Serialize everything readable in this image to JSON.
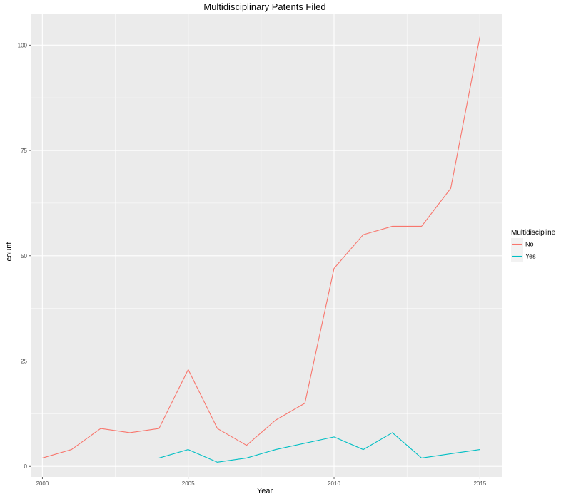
{
  "chart_data": {
    "type": "line",
    "title": "Multidisciplinary Patents Filed",
    "xlabel": "Year",
    "ylabel": "count",
    "xlim": [
      1999.6,
      2015.75
    ],
    "ylim": [
      -2.5,
      107.5
    ],
    "xticks": [
      2000,
      2005,
      2010,
      2015
    ],
    "yticks": [
      0,
      25,
      50,
      75,
      100
    ],
    "grid": true,
    "legend": {
      "title": "Multidiscipline",
      "position": "right"
    },
    "series": [
      {
        "name": "No",
        "color": "#F8766D",
        "x": [
          2000,
          2001,
          2002,
          2003,
          2004,
          2005,
          2006,
          2007,
          2008,
          2009,
          2010,
          2011,
          2012,
          2013,
          2014,
          2015
        ],
        "y": [
          2,
          4,
          9,
          8,
          9,
          23,
          9,
          5,
          11,
          15,
          47,
          55,
          57,
          57,
          66,
          102
        ]
      },
      {
        "name": "Yes",
        "color": "#00BFC4",
        "x": [
          2004,
          2005,
          2006,
          2007,
          2008,
          2010,
          2011,
          2012,
          2013,
          2015
        ],
        "y": [
          2,
          4,
          1,
          2,
          4,
          7,
          4,
          8,
          2,
          4
        ]
      }
    ]
  },
  "colors": {
    "panel": "#EBEBEB",
    "grid": "#FFFFFF",
    "tick": "#333333"
  }
}
